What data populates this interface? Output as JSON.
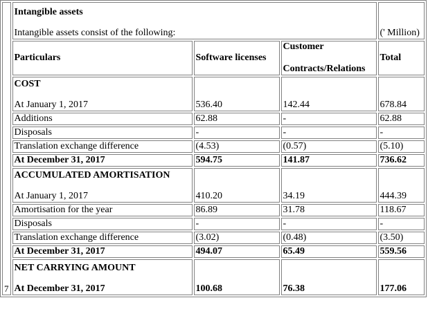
{
  "note_number": "7",
  "header": {
    "title": "Intangible assets",
    "intro": "Intangible assets consist of the following:",
    "unit": "(' Million)"
  },
  "columns": {
    "particulars": "Particulars",
    "software": "Software licenses",
    "customer_line1": "Customer",
    "customer_line2": "Contracts/Relations",
    "total": "Total"
  },
  "sections": {
    "cost": {
      "title": "COST",
      "rows": [
        {
          "label": "At January 1, 2017",
          "software": "536.40",
          "customer": "142.44",
          "total": "678.84"
        },
        {
          "label": "Additions",
          "software": "62.88",
          "customer": "-",
          "total": "62.88"
        },
        {
          "label": "Disposals",
          "software": "-",
          "customer": "-",
          "total": "-"
        },
        {
          "label": "Translation exchange difference",
          "software": "(4.53)",
          "customer": "(0.57)",
          "total": "(5.10)"
        },
        {
          "label": "At December 31, 2017",
          "software": "594.75",
          "customer": "141.87",
          "total": "736.62"
        }
      ]
    },
    "amort": {
      "title": "ACCUMULATED AMORTISATION",
      "rows": [
        {
          "label": "At January 1, 2017",
          "software": "410.20",
          "customer": "34.19",
          "total": "444.39"
        },
        {
          "label": "Amortisation for the year",
          "software": "86.89",
          "customer": "31.78",
          "total": "118.67"
        },
        {
          "label": "Disposals",
          "software": "-",
          "customer": "-",
          "total": "-"
        },
        {
          "label": "Translation exchange difference",
          "software": "(3.02)",
          "customer": "(0.48)",
          "total": "(3.50)"
        },
        {
          "label": "At December 31, 2017",
          "software": "494.07",
          "customer": "65.49",
          "total": "559.56"
        }
      ]
    },
    "net": {
      "title": "NET CARRYING AMOUNT",
      "row": {
        "label": "At December 31, 2017",
        "software": "100.68",
        "customer": "76.38",
        "total": "177.06"
      }
    }
  }
}
